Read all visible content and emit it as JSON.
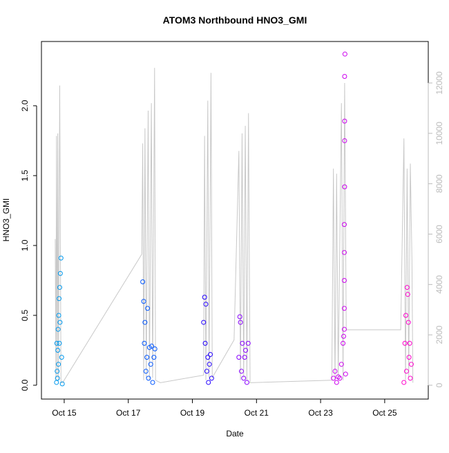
{
  "chart_data": {
    "type": "scatter",
    "title": "ATOM3 Northbound HNO3_GMI",
    "x_label": "Date",
    "y_label": "HNO3_GMI",
    "xlim": [
      14.29,
      26.36
    ],
    "ylim": [
      -0.099,
      2.46
    ],
    "y2lim": [
      -549,
      13647
    ],
    "xticks": [
      {
        "value": 15,
        "label": "Oct 15"
      },
      {
        "value": 17,
        "label": "Oct 17"
      },
      {
        "value": 19,
        "label": "Oct 19"
      },
      {
        "value": 21,
        "label": "Oct 21"
      },
      {
        "value": 23,
        "label": "Oct 23"
      },
      {
        "value": 25,
        "label": "Oct 25"
      }
    ],
    "yticks": [
      {
        "value": 0,
        "label": "0.0"
      },
      {
        "value": 0.5,
        "label": "0.5"
      },
      {
        "value": 1,
        "label": "1.0"
      },
      {
        "value": 1.5,
        "label": "1.5"
      },
      {
        "value": 2,
        "label": "2.0"
      }
    ],
    "y2ticks": [
      0,
      2000,
      4000,
      6000,
      8000,
      10000,
      12000
    ],
    "y2_color": "#bbbbbb",
    "series": [
      {
        "color": "#0099ee",
        "x": [
          14.76,
          14.77,
          14.78,
          14.79,
          14.8,
          14.81,
          14.82,
          14.83,
          14.84,
          14.85,
          14.86,
          14.87,
          14.88,
          14.9,
          14.92,
          14.94
        ],
        "values": [
          0.02,
          0.3,
          0.1,
          0.05,
          0.25,
          0.4,
          0.15,
          0.5,
          0.62,
          0.3,
          0.7,
          0.45,
          0.8,
          0.91,
          0.2,
          0.01
        ]
      },
      {
        "color": "#0055ff",
        "x": [
          17.45,
          17.48,
          17.5,
          17.52,
          17.55,
          17.58,
          17.6,
          17.63,
          17.66,
          17.7,
          17.73,
          17.76,
          17.8,
          17.83
        ],
        "values": [
          0.74,
          0.6,
          0.3,
          0.45,
          0.1,
          0.2,
          0.55,
          0.05,
          0.27,
          0.15,
          0.28,
          0.02,
          0.2,
          0.26
        ]
      },
      {
        "color": "#2200ff",
        "x": [
          19.35,
          19.38,
          19.4,
          19.42,
          19.45,
          19.48,
          19.5,
          19.53,
          19.56,
          19.6
        ],
        "values": [
          0.45,
          0.63,
          0.3,
          0.58,
          0.1,
          0.2,
          0.02,
          0.15,
          0.22,
          0.05
        ]
      },
      {
        "color": "#8800ff",
        "x": [
          20.45,
          20.48,
          20.5,
          20.53,
          20.56,
          20.6,
          20.63,
          20.66,
          20.7,
          20.74
        ],
        "values": [
          0.2,
          0.49,
          0.45,
          0.1,
          0.3,
          0.05,
          0.2,
          0.25,
          0.02,
          0.3
        ]
      },
      {
        "color": "#cc00ee",
        "x": [
          23.4,
          23.45,
          23.5,
          23.55,
          23.6,
          23.65,
          23.7,
          23.72,
          23.74,
          23.74,
          23.74,
          23.74,
          23.74,
          23.75,
          23.75,
          23.75,
          23.75,
          23.76,
          23.78
        ],
        "values": [
          0.05,
          0.1,
          0.02,
          0.06,
          0.05,
          0.15,
          0.3,
          0.35,
          0.4,
          0.55,
          0.75,
          0.95,
          1.15,
          1.42,
          1.75,
          1.89,
          2.21,
          2.37,
          0.08
        ]
      },
      {
        "color": "#ff00cc",
        "x": [
          25.6,
          25.63,
          25.66,
          25.68,
          25.7,
          25.72,
          25.74,
          25.76,
          25.78,
          25.8,
          25.83
        ],
        "values": [
          0.02,
          0.3,
          0.5,
          0.1,
          0.7,
          0.65,
          0.45,
          0.2,
          0.3,
          0.05,
          0.15
        ]
      },
      {
        "color": "#c8c8c8",
        "axis": "y2",
        "type": "line",
        "x": [
          14.72,
          14.74,
          14.76,
          14.78,
          14.8,
          14.82,
          14.86,
          14.9,
          14.95,
          17.42,
          17.45,
          17.48,
          17.52,
          17.56,
          17.62,
          17.66,
          17.72,
          17.76,
          17.82,
          17.85,
          18.0,
          19.35,
          19.38,
          19.42,
          19.48,
          19.52,
          19.58,
          19.62,
          20.3,
          20.45,
          20.5,
          20.55,
          20.6,
          20.65,
          20.7,
          20.75,
          20.8,
          23.35,
          23.4,
          23.45,
          23.5,
          23.55,
          23.65,
          23.7,
          23.75,
          23.8,
          25.5,
          25.6,
          25.65,
          25.7,
          25.75,
          25.8,
          25.85,
          25.88
        ],
        "values": [
          5800,
          200,
          9900,
          300,
          10000,
          200,
          11900,
          100,
          100,
          5200,
          9600,
          200,
          10200,
          300,
          10900,
          200,
          11200,
          300,
          12600,
          200,
          100,
          400,
          9900,
          200,
          11300,
          300,
          12400,
          300,
          1800,
          9300,
          200,
          10000,
          300,
          10300,
          200,
          10800,
          100,
          200,
          8600,
          200,
          8400,
          300,
          11200,
          200,
          12000,
          2200,
          2200,
          9800,
          200,
          8600,
          300,
          8800,
          5000,
          100
        ]
      }
    ]
  }
}
